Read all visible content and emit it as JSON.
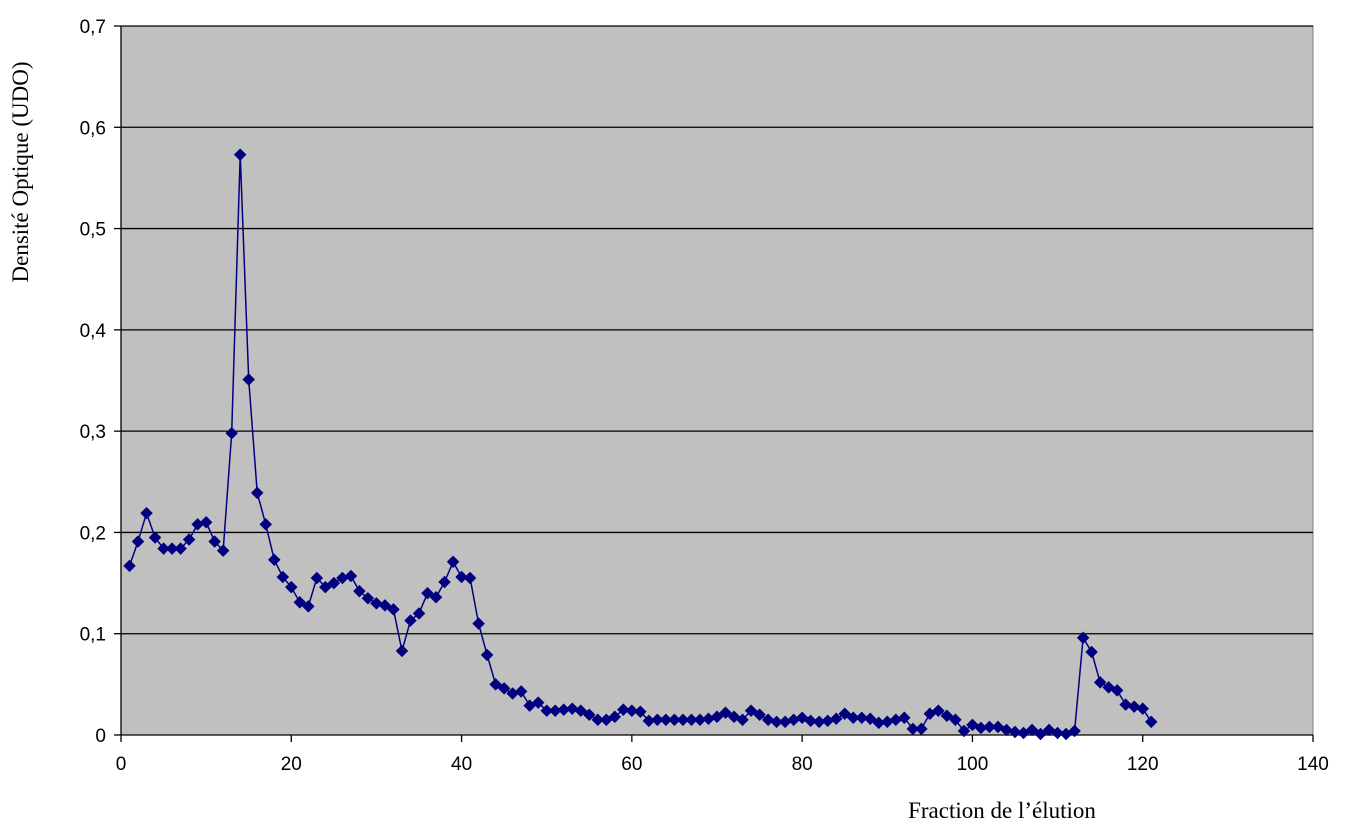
{
  "chart_data": {
    "type": "line",
    "title": "",
    "xlabel": "Fraction de l’élution",
    "ylabel": "Densité Optique (UDO)",
    "xlim": [
      0,
      140
    ],
    "ylim": [
      0,
      0.7
    ],
    "x_ticks": [
      0,
      20,
      40,
      60,
      80,
      100,
      120,
      140
    ],
    "x_tick_labels": [
      "0",
      "20",
      "40",
      "60",
      "80",
      "100",
      "120",
      "140"
    ],
    "y_ticks": [
      0,
      0.1,
      0.2,
      0.3,
      0.4,
      0.5,
      0.6,
      0.7
    ],
    "y_tick_labels": [
      "0",
      "0,1",
      "0,2",
      "0,3",
      "0,4",
      "0,5",
      "0,6",
      "0,7"
    ],
    "grid": "horizontal",
    "legend": "none",
    "series": [
      {
        "color": "#000080",
        "marker": "diamond",
        "x": [
          1,
          2,
          3,
          4,
          5,
          6,
          7,
          8,
          9,
          10,
          11,
          12,
          13,
          14,
          15,
          16,
          17,
          18,
          19,
          20,
          21,
          22,
          23,
          24,
          25,
          26,
          27,
          28,
          29,
          30,
          31,
          32,
          33,
          34,
          35,
          36,
          37,
          38,
          39,
          40,
          41,
          42,
          43,
          44,
          45,
          46,
          47,
          48,
          49,
          50,
          51,
          52,
          53,
          54,
          55,
          56,
          57,
          58,
          59,
          60,
          61,
          62,
          63,
          64,
          65,
          66,
          67,
          68,
          69,
          70,
          71,
          72,
          73,
          74,
          75,
          76,
          77,
          78,
          79,
          80,
          81,
          82,
          83,
          84,
          85,
          86,
          87,
          88,
          89,
          90,
          91,
          92,
          93,
          94,
          95,
          96,
          97,
          98,
          99,
          100,
          101,
          102,
          103,
          104,
          105,
          106,
          107,
          108,
          109,
          110,
          111,
          112,
          113,
          114,
          115,
          116,
          117,
          118,
          119,
          120,
          121
        ],
        "y": [
          0.167,
          0.191,
          0.219,
          0.195,
          0.184,
          0.184,
          0.184,
          0.193,
          0.208,
          0.21,
          0.191,
          0.182,
          0.298,
          0.573,
          0.351,
          0.239,
          0.208,
          0.173,
          0.156,
          0.146,
          0.131,
          0.127,
          0.155,
          0.146,
          0.15,
          0.155,
          0.157,
          0.142,
          0.135,
          0.13,
          0.128,
          0.124,
          0.083,
          0.113,
          0.12,
          0.14,
          0.136,
          0.151,
          0.171,
          0.156,
          0.155,
          0.11,
          0.079,
          0.05,
          0.046,
          0.041,
          0.043,
          0.029,
          0.032,
          0.024,
          0.024,
          0.025,
          0.026,
          0.024,
          0.02,
          0.015,
          0.015,
          0.018,
          0.025,
          0.024,
          0.023,
          0.014,
          0.015,
          0.015,
          0.015,
          0.015,
          0.015,
          0.015,
          0.016,
          0.018,
          0.022,
          0.018,
          0.015,
          0.024,
          0.02,
          0.015,
          0.013,
          0.013,
          0.015,
          0.017,
          0.014,
          0.013,
          0.014,
          0.016,
          0.021,
          0.017,
          0.017,
          0.016,
          0.012,
          0.013,
          0.015,
          0.017,
          0.006,
          0.006,
          0.021,
          0.024,
          0.019,
          0.015,
          0.004,
          0.01,
          0.007,
          0.008,
          0.008,
          0.005,
          0.003,
          0.002,
          0.005,
          0.001,
          0.005,
          0.002,
          0.001,
          0.004,
          0.096,
          0.082,
          0.052,
          0.047,
          0.044,
          0.03,
          0.028,
          0.026,
          0.013
        ]
      }
    ]
  }
}
